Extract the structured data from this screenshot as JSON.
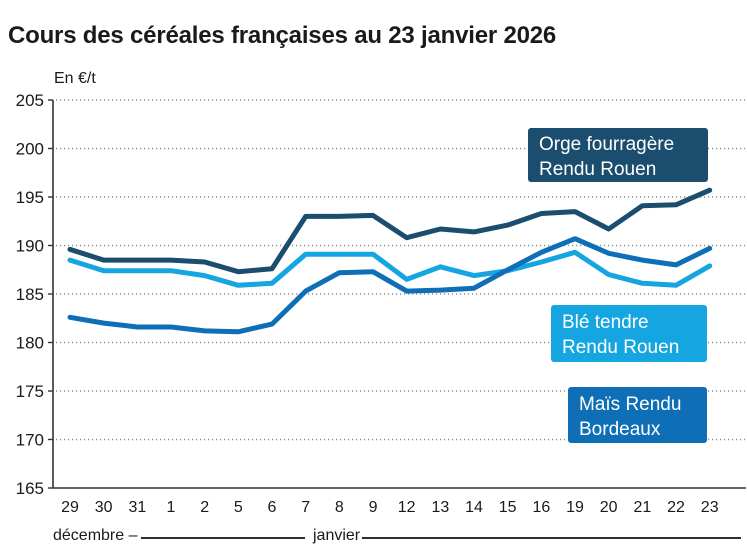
{
  "title": "Cours des céréales françaises au 23 janvier 2026",
  "unit_label": "En €/t",
  "footer": {
    "month_1": "décembre –",
    "month_2": "janvier"
  },
  "chart_data": {
    "type": "line",
    "title": "Cours des céréales françaises au 23 janvier 2026",
    "ylabel": "En €/t",
    "xlabel": "",
    "ylim": [
      165,
      205
    ],
    "y_tick_step": 5,
    "grid": "dotted horizontal gridlines",
    "legend_position": "labeled boxes on plot",
    "x_labels": [
      "29",
      "30",
      "31",
      "1",
      "2",
      "5",
      "6",
      "7",
      "8",
      "9",
      "12",
      "13",
      "14",
      "15",
      "16",
      "19",
      "20",
      "21",
      "22",
      "23"
    ],
    "x_month_groups": [
      "décembre",
      "janvier"
    ],
    "series": [
      {
        "name": "Blé tendre Rendu Rouen",
        "label_lines": [
          "Blé tendre",
          "Rendu Rouen"
        ],
        "color": "#15A6E1",
        "values": [
          188.5,
          187.4,
          187.4,
          187.4,
          186.9,
          185.9,
          186.1,
          189.1,
          189.1,
          189.1,
          186.5,
          187.8,
          186.9,
          187.4,
          188.3,
          189.3,
          187.0,
          186.1,
          185.9,
          187.9
        ]
      },
      {
        "name": "Maïs Rendu Bordeaux",
        "label_lines": [
          "Maïs Rendu",
          "Bordeaux"
        ],
        "color": "#0E6FB6",
        "values": [
          182.6,
          182.0,
          181.6,
          181.6,
          181.2,
          181.1,
          181.9,
          185.3,
          187.2,
          187.3,
          185.3,
          185.4,
          185.6,
          187.5,
          189.3,
          190.7,
          189.2,
          188.5,
          188.0,
          189.7
        ]
      },
      {
        "name": "Orge fourragère Rendu Rouen",
        "label_lines": [
          "Orge fourragère",
          "Rendu Rouen"
        ],
        "color": "#1B4D6E",
        "values": [
          189.6,
          188.5,
          188.5,
          188.5,
          188.3,
          187.3,
          187.6,
          193.0,
          193.0,
          193.1,
          190.8,
          191.7,
          191.4,
          192.1,
          193.3,
          193.5,
          191.7,
          194.1,
          194.2,
          195.7
        ]
      }
    ],
    "colors": {
      "axis": "#333333",
      "grid": "#8f8f8f",
      "text": "#1a1a1a"
    }
  }
}
